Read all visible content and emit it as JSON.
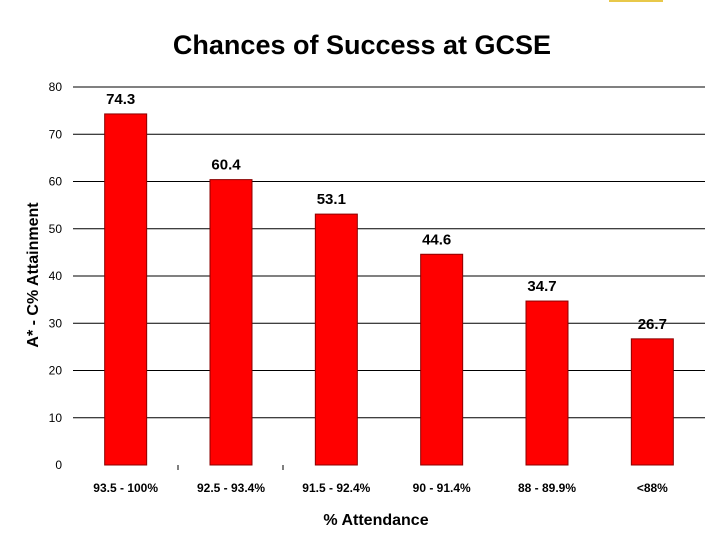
{
  "chart_data": {
    "type": "bar",
    "title": "Chances of Success at GCSE",
    "xlabel": "% Attendance",
    "ylabel": "A* - C% Attainment",
    "categories": [
      "93.5 - 100%",
      "92.5 - 93.4%",
      "91.5 - 92.4%",
      "90 - 91.4%",
      "88 - 89.9%",
      "<88%"
    ],
    "values": [
      74.3,
      60.4,
      53.1,
      44.6,
      34.7,
      26.7
    ],
    "data_labels": [
      "74.3",
      "60.4",
      "53.1",
      "44.6",
      "34.7",
      "26.7"
    ],
    "ylim": [
      0,
      80
    ],
    "yticks": [
      "0",
      "10",
      "20",
      "30",
      "40",
      "50",
      "60",
      "70",
      "80"
    ],
    "grid": true,
    "bar_color": "#ff0000",
    "bar_edge_color": "#8b0000"
  }
}
